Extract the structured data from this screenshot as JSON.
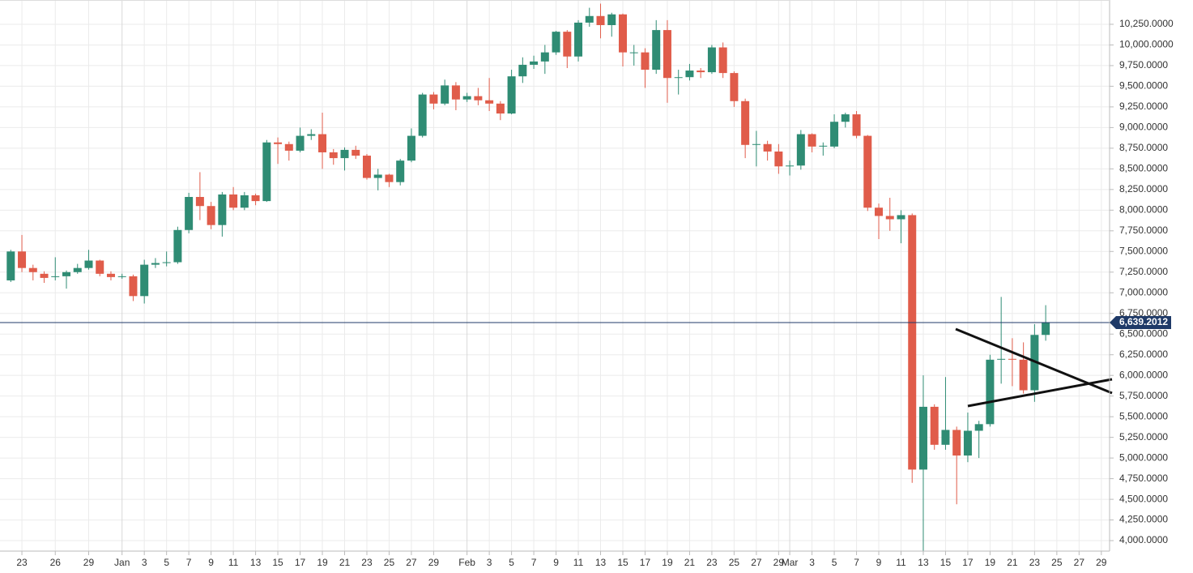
{
  "chart_data": {
    "type": "candlestick",
    "categories": [
      null,
      "23",
      null,
      null,
      "26",
      null,
      null,
      "29",
      null,
      null,
      "Jan",
      null,
      "3",
      null,
      "5",
      null,
      "7",
      null,
      "9",
      null,
      "11",
      null,
      "13",
      null,
      "15",
      null,
      "17",
      null,
      "19",
      null,
      "21",
      null,
      "23",
      null,
      "25",
      null,
      "27",
      null,
      "29",
      null,
      null,
      "Feb",
      null,
      "3",
      null,
      "5",
      null,
      "7",
      null,
      "9",
      null,
      "11",
      null,
      "13",
      null,
      "15",
      null,
      "17",
      null,
      "19",
      null,
      "21",
      null,
      "23",
      null,
      "25",
      null,
      "27",
      null,
      "29",
      "Mar",
      null,
      "3",
      null,
      "5",
      null,
      "7",
      null,
      "9",
      null,
      "11",
      null,
      "13",
      null,
      "15",
      null,
      "17",
      null,
      "19",
      null,
      "21",
      null,
      "23",
      null,
      "25",
      null,
      "27",
      null,
      "29"
    ],
    "open": [
      7150,
      7500,
      7300,
      7230,
      7190,
      7200,
      7250,
      7300,
      7390,
      7230,
      7190,
      7200,
      6960,
      7340,
      7360,
      7370,
      7760,
      8160,
      8050,
      7820,
      8190,
      8030,
      8180,
      8110,
      8820,
      8800,
      8720,
      8900,
      8920,
      8700,
      8630,
      8730,
      8660,
      8390,
      8430,
      8340,
      8600,
      8900,
      9400,
      9290,
      9510,
      9340,
      9380,
      9330,
      9290,
      9170,
      9620,
      9760,
      9800,
      9910,
      10160,
      9860,
      10270,
      10350,
      10240,
      10370,
      9910,
      9910,
      9700,
      10180,
      9600,
      9610,
      9690,
      9670,
      9970,
      9660,
      9320,
      8790,
      8800,
      8710,
      8530,
      8540,
      8920,
      8770,
      8770,
      9070,
      9160,
      8900,
      8030,
      7930,
      7890,
      7940,
      4860,
      5620,
      5160,
      5340,
      5030,
      5330,
      5410,
      6190,
      6200,
      6190,
      5820,
      6490,
      null,
      null,
      null,
      null,
      null
    ],
    "high": [
      7520,
      7700,
      7340,
      7260,
      7430,
      7270,
      7350,
      7520,
      7400,
      7260,
      7230,
      7220,
      7400,
      7420,
      7500,
      7800,
      8210,
      8460,
      8100,
      8220,
      8280,
      8220,
      8200,
      8850,
      8880,
      8830,
      9000,
      8980,
      9180,
      8740,
      8760,
      8780,
      8680,
      8500,
      8440,
      8620,
      8990,
      9420,
      9430,
      9580,
      9550,
      9420,
      9480,
      9600,
      9320,
      9700,
      9850,
      9870,
      10000,
      10170,
      10180,
      10300,
      10450,
      10500,
      10390,
      10380,
      10000,
      9960,
      10300,
      10300,
      9700,
      9770,
      9720,
      10000,
      10030,
      9680,
      9350,
      8960,
      8840,
      8800,
      8600,
      8970,
      8930,
      8820,
      9160,
      9180,
      9200,
      8910,
      8080,
      8150,
      8000,
      7960,
      6000,
      5650,
      5980,
      5380,
      5550,
      5450,
      6250,
      6950,
      6450,
      6400,
      6620,
      6850,
      null,
      null,
      null,
      null,
      null
    ],
    "low": [
      7130,
      7250,
      7150,
      7120,
      7150,
      7050,
      7230,
      7280,
      7200,
      7150,
      7170,
      6900,
      6870,
      7300,
      7320,
      7350,
      7720,
      7880,
      7770,
      7680,
      8000,
      8000,
      8060,
      8100,
      8560,
      8600,
      8700,
      8850,
      8500,
      8550,
      8480,
      8620,
      8370,
      8240,
      8280,
      8300,
      8580,
      8880,
      9220,
      9270,
      9210,
      9310,
      9270,
      9200,
      9090,
      9160,
      9540,
      9710,
      9650,
      9880,
      9720,
      9800,
      10220,
      10080,
      10100,
      9740,
      9750,
      9480,
      9650,
      9300,
      9400,
      9570,
      9600,
      9650,
      9600,
      9250,
      8630,
      8530,
      8600,
      8440,
      8420,
      8490,
      8700,
      8660,
      8750,
      9000,
      8870,
      7990,
      7650,
      7750,
      7600,
      4700,
      3850,
      5100,
      5100,
      4440,
      4950,
      5000,
      5380,
      5900,
      5870,
      5780,
      5680,
      6420,
      null,
      null,
      null,
      null,
      null
    ],
    "close": [
      7500,
      7300,
      7250,
      7180,
      7200,
      7250,
      7300,
      7390,
      7230,
      7190,
      7200,
      6960,
      7340,
      7360,
      7370,
      7760,
      8160,
      8050,
      7820,
      8190,
      8030,
      8180,
      8110,
      8820,
      8800,
      8720,
      8900,
      8920,
      8700,
      8630,
      8730,
      8660,
      8390,
      8430,
      8340,
      8600,
      8900,
      9400,
      9290,
      9510,
      9340,
      9380,
      9330,
      9290,
      9170,
      9620,
      9760,
      9800,
      9910,
      10160,
      9860,
      10270,
      10350,
      10240,
      10370,
      9910,
      9910,
      9700,
      10180,
      9600,
      9610,
      9690,
      9670,
      9970,
      9660,
      9320,
      8790,
      8800,
      8710,
      8530,
      8540,
      8920,
      8770,
      8780,
      9070,
      9160,
      8900,
      8030,
      7930,
      7890,
      7940,
      4860,
      5620,
      5160,
      5340,
      5030,
      5330,
      5410,
      6190,
      6200,
      6190,
      5820,
      6490,
      6640,
      null,
      null,
      null,
      null,
      null
    ],
    "up_color": "#2f8c74",
    "down_color": "#e05c4a",
    "ylim": [
      3873,
      10544
    ],
    "yticks": [
      {
        "value": 4000,
        "label": "4,000.0000"
      },
      {
        "value": 4250,
        "label": "4,250.0000"
      },
      {
        "value": 4500,
        "label": "4,500.0000"
      },
      {
        "value": 4750,
        "label": "4,750.0000"
      },
      {
        "value": 5000,
        "label": "5,000.0000"
      },
      {
        "value": 5250,
        "label": "5,250.0000"
      },
      {
        "value": 5500,
        "label": "5,500.0000"
      },
      {
        "value": 5750,
        "label": "5,750.0000"
      },
      {
        "value": 6000,
        "label": "6,000.0000"
      },
      {
        "value": 6250,
        "label": "6,250.0000"
      },
      {
        "value": 6500,
        "label": "6,500.0000"
      },
      {
        "value": 6750,
        "label": "6,750.0000"
      },
      {
        "value": 7000,
        "label": "7,000.0000"
      },
      {
        "value": 7250,
        "label": "7,250.0000"
      },
      {
        "value": 7500,
        "label": "7,500.0000"
      },
      {
        "value": 7750,
        "label": "7,750.0000"
      },
      {
        "value": 8000,
        "label": "8,000.0000"
      },
      {
        "value": 8250,
        "label": "8,250.0000"
      },
      {
        "value": 8500,
        "label": "8,500.0000"
      },
      {
        "value": 8750,
        "label": "8,750.0000"
      },
      {
        "value": 9000,
        "label": "9,000.0000"
      },
      {
        "value": 9250,
        "label": "9,250.0000"
      },
      {
        "value": 9500,
        "label": "9,500.0000"
      },
      {
        "value": 9750,
        "label": "9,750.0000"
      },
      {
        "value": 10000,
        "label": "10,000.0000"
      },
      {
        "value": 10250,
        "label": "10,250.0000"
      }
    ],
    "grid": true,
    "last_price": {
      "value": 6639.2012,
      "label": "6,639.2012"
    }
  }
}
